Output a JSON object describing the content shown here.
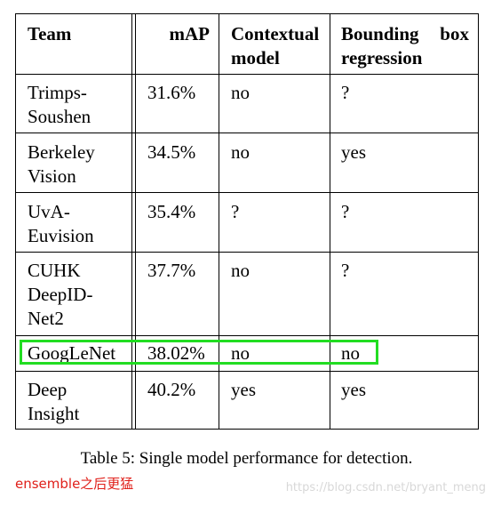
{
  "table": {
    "headers": {
      "team": "Team",
      "map": "mAP",
      "contextual": "Contextual\nmodel",
      "bbox": "Bounding box regression"
    },
    "rows": [
      {
        "team": "Trimps-\nSoushen",
        "map": "31.6%",
        "contextual": "no",
        "bbox": "?"
      },
      {
        "team": "Berkeley\nVision",
        "map": "34.5%",
        "contextual": "no",
        "bbox": "yes"
      },
      {
        "team": "UvA-\nEuvision",
        "map": "35.4%",
        "contextual": "?",
        "bbox": "?"
      },
      {
        "team": "CUHK\nDeepID-\nNet2",
        "map": "37.7%",
        "contextual": "no",
        "bbox": "?"
      },
      {
        "team": "GoogLeNet",
        "map": "38.02%",
        "contextual": "no",
        "bbox": "no"
      },
      {
        "team": "Deep\nInsight",
        "map": "40.2%",
        "contextual": "yes",
        "bbox": "yes"
      }
    ]
  },
  "caption": "Table 5: Single model performance for detection.",
  "annotation": {
    "note": "ensemble之后更猛",
    "highlight_color": "#22dd22"
  },
  "watermark": "https://blog.csdn.net/bryant_meng"
}
